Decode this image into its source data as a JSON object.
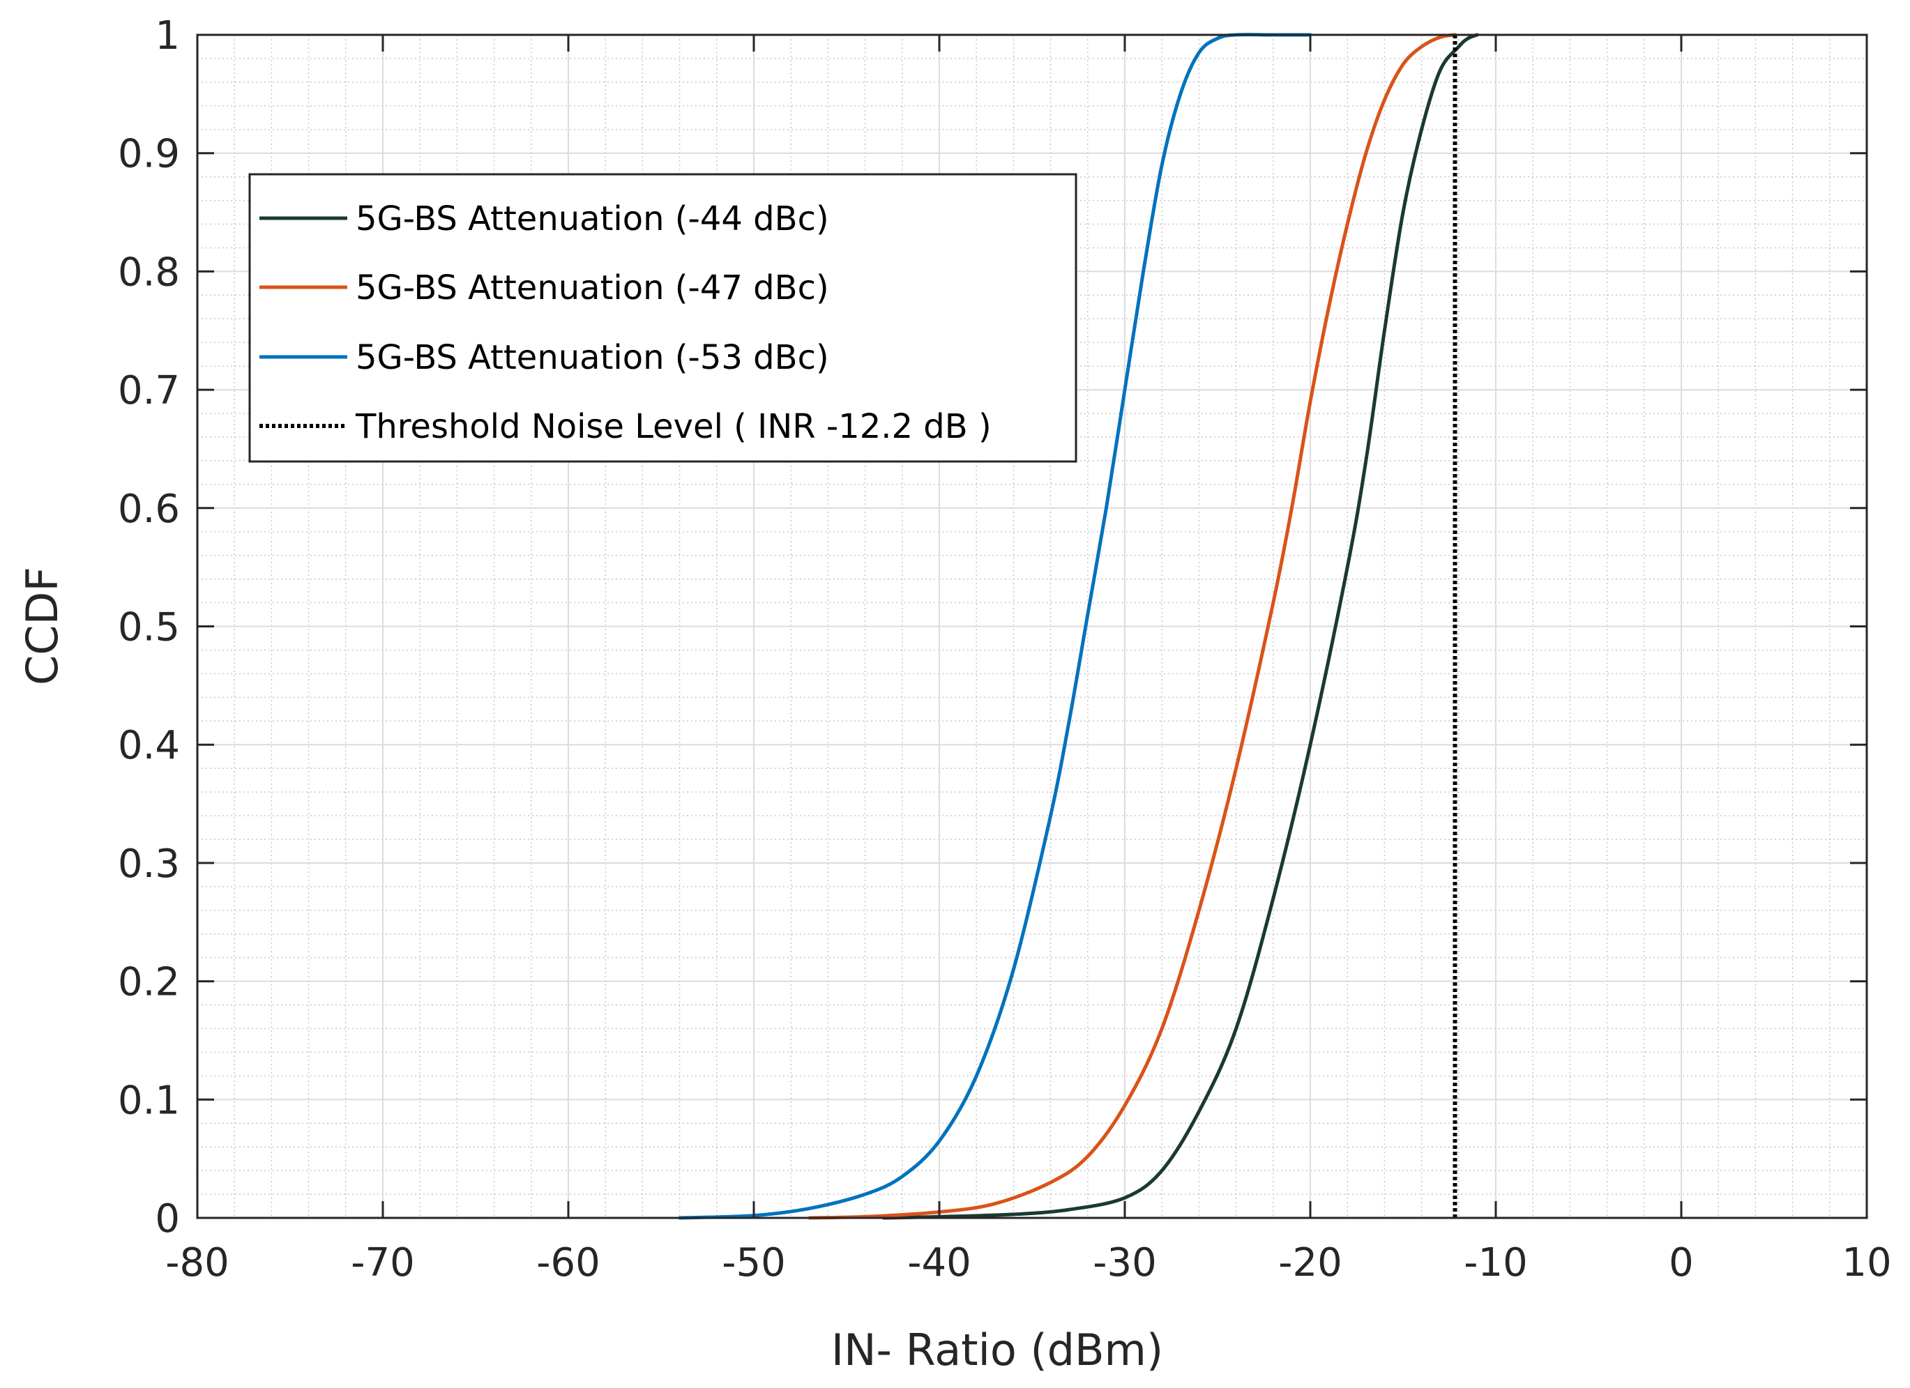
{
  "chart_data": {
    "type": "line",
    "title": "",
    "xlabel": "IN- Ratio (dBm)",
    "ylabel": "CCDF",
    "xlim": [
      -80,
      10
    ],
    "ylim": [
      0,
      1
    ],
    "xticks": [
      -80,
      -70,
      -60,
      -50,
      -40,
      -30,
      -20,
      -10,
      0,
      10
    ],
    "xtick_labels": [
      "-80",
      "-70",
      "-60",
      "-50",
      "-40",
      "-30",
      "-20",
      "-10",
      "0",
      "10"
    ],
    "yticks": [
      0,
      0.1,
      0.2,
      0.3,
      0.4,
      0.5,
      0.6,
      0.7,
      0.8,
      0.9,
      1
    ],
    "ytick_labels": [
      "0",
      "0.1",
      "0.2",
      "0.3",
      "0.4",
      "0.5",
      "0.6",
      "0.7",
      "0.8",
      "0.9",
      "1"
    ],
    "grid": true,
    "minor_grid": true,
    "legend_position": "top-left",
    "series": [
      {
        "name": "5G-BS Attenuation (-44 dBc)",
        "color": "#1b3a2f",
        "style": "solid",
        "x": [
          -43,
          -40,
          -36,
          -33,
          -30,
          -28,
          -26,
          -24,
          -22,
          -20,
          -18,
          -17,
          -16,
          -15,
          -14,
          -13,
          -12,
          -11.5,
          -11
        ],
        "y": [
          0,
          0.001,
          0.003,
          0.007,
          0.017,
          0.04,
          0.09,
          0.16,
          0.27,
          0.4,
          0.55,
          0.64,
          0.75,
          0.85,
          0.92,
          0.97,
          0.99,
          0.997,
          1
        ]
      },
      {
        "name": "5G-BS Attenuation (-47 dBc)",
        "color": "#d95319",
        "style": "solid",
        "x": [
          -47,
          -44,
          -40,
          -37,
          -34,
          -32,
          -30,
          -28,
          -26,
          -24,
          -22,
          -21,
          -20,
          -19,
          -18,
          -17,
          -16,
          -15,
          -14,
          -13,
          -12.2
        ],
        "y": [
          0,
          0.001,
          0.005,
          0.012,
          0.03,
          0.052,
          0.095,
          0.16,
          0.26,
          0.38,
          0.52,
          0.6,
          0.69,
          0.77,
          0.84,
          0.9,
          0.945,
          0.975,
          0.99,
          0.998,
          1
        ]
      },
      {
        "name": "5G-BS Attenuation (-53 dBc)",
        "color": "#0072bd",
        "style": "solid",
        "x": [
          -54,
          -50,
          -47,
          -44,
          -42,
          -40,
          -38,
          -36,
          -34,
          -33,
          -32,
          -31,
          -30,
          -29,
          -28,
          -27,
          -26,
          -25,
          -24,
          -22,
          -20
        ],
        "y": [
          0,
          0.002,
          0.008,
          0.02,
          0.035,
          0.065,
          0.12,
          0.21,
          0.34,
          0.42,
          0.51,
          0.6,
          0.7,
          0.8,
          0.89,
          0.95,
          0.985,
          0.997,
          1,
          1,
          1
        ]
      },
      {
        "name": "Threshold Noise Level ( INR -12.2 dB )",
        "color": "#000000",
        "style": "dotted",
        "x": [
          -12.2,
          -12.2
        ],
        "y": [
          0,
          1
        ]
      }
    ]
  }
}
